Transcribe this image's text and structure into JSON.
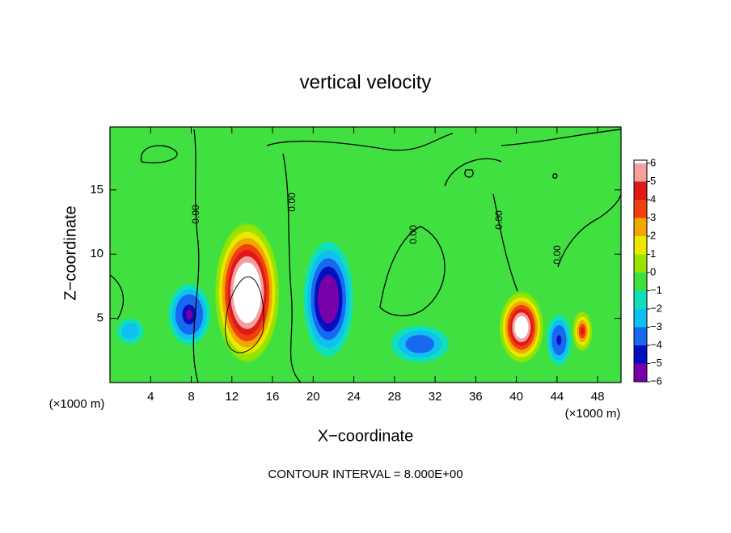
{
  "chart_data": {
    "type": "contour",
    "title": "vertical velocity",
    "x_label": "X−coordinate",
    "y_label": "Z−coordinate",
    "x_unit_label": "(×1000 m)",
    "annotation": "CONTOUR INTERVAL = 8.000E+00",
    "contour_label": "0.00",
    "xlim": [
      0,
      50.3
    ],
    "ylim": [
      0,
      19.9
    ],
    "xticks": [
      4,
      8,
      12,
      16,
      20,
      24,
      28,
      32,
      36,
      40,
      44,
      48
    ],
    "yticks": [
      5,
      10,
      15
    ],
    "colorbar": {
      "ticks": [
        {
          "value": -6,
          "label": "−6"
        },
        {
          "value": -5,
          "label": "−5"
        },
        {
          "value": -4,
          "label": "−4"
        },
        {
          "value": -3,
          "label": "−3"
        },
        {
          "value": -2,
          "label": "−2"
        },
        {
          "value": -1,
          "label": "−1"
        },
        0,
        1,
        2,
        3,
        4,
        5,
        6
      ],
      "colors": [
        "#7800a8",
        "#0010c0",
        "#1868f0",
        "#10c0f0",
        "#10e0b8",
        "#40e040",
        "#98e400",
        "#e8e800",
        "#f0a800",
        "#f04010",
        "#e01818",
        "#f4a0a0"
      ]
    },
    "features": [
      {
        "x": 13.5,
        "z": 7,
        "rx": 3.2,
        "rz": 5.5,
        "value": 10
      },
      {
        "x": 21.5,
        "z": 6.5,
        "rx": 3,
        "rz": 5.5,
        "value": -7
      },
      {
        "x": 7.8,
        "z": 5.3,
        "rx": 2.6,
        "rz": 3,
        "value": -5.5
      },
      {
        "x": 40.5,
        "z": 4.3,
        "rx": 2.2,
        "rz": 2.8,
        "value": 8
      },
      {
        "x": 30.5,
        "z": 3,
        "rx": 4,
        "rz": 2,
        "value": -4
      },
      {
        "x": 44.2,
        "z": 3.3,
        "rx": 1.6,
        "rz": 2.6,
        "value": -4.5
      },
      {
        "x": 46.5,
        "z": 4,
        "rx": 1,
        "rz": 1.6,
        "value": 4
      },
      {
        "x": 2,
        "z": 4,
        "rx": 2,
        "rz": 1.5,
        "value": -3
      }
    ]
  }
}
